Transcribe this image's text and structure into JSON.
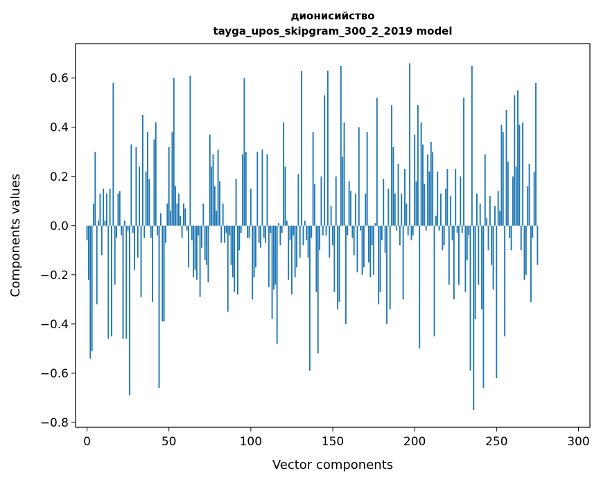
{
  "chart_data": {
    "type": "bar",
    "title": "дионисийство",
    "subtitle": "tayga_upos_skipgram_300_2_2019 model",
    "xlabel": "Vector components",
    "ylabel": "Components values",
    "xlim": [
      -7,
      307
    ],
    "ylim": [
      -0.82,
      0.74
    ],
    "x_ticks": [
      0,
      50,
      100,
      150,
      200,
      250,
      300
    ],
    "x_tick_labels": [
      "0",
      "50",
      "100",
      "150",
      "200",
      "250",
      "300"
    ],
    "y_ticks": [
      -0.8,
      -0.6,
      -0.4,
      -0.2,
      0.0,
      0.2,
      0.4,
      0.6
    ],
    "y_tick_labels": [
      "−0.8",
      "−0.6",
      "−0.4",
      "−0.2",
      "0.0",
      "0.2",
      "0.4",
      "0.6"
    ],
    "grid": false,
    "bar_color": "#1f77b4",
    "values": [
      -0.06,
      -0.22,
      -0.54,
      -0.51,
      0.09,
      0.3,
      -0.32,
      0.02,
      0.13,
      -0.12,
      0.15,
      0.02,
      0.13,
      -0.46,
      0.15,
      -0.45,
      0.58,
      -0.24,
      -0.05,
      0.13,
      0.14,
      -0.04,
      -0.46,
      0.02,
      -0.46,
      -0.02,
      -0.69,
      0.33,
      -0.03,
      -0.18,
      0.32,
      -0.13,
      0.24,
      -0.29,
      0.45,
      -0.05,
      0.22,
      0.38,
      0.19,
      -0.05,
      -0.31,
      0.35,
      0.42,
      -0.04,
      -0.66,
      0.05,
      -0.39,
      -0.39,
      -0.07,
      0.09,
      0.32,
      0.06,
      0.38,
      0.6,
      0.16,
      0.09,
      0.13,
      0.04,
      -0.05,
      0.09,
      0.07,
      -0.02,
      -0.17,
      0.61,
      -0.06,
      -0.21,
      -0.18,
      -0.22,
      -0.04,
      -0.29,
      -0.09,
      0.09,
      -0.14,
      -0.16,
      -0.23,
      0.37,
      0.24,
      0.29,
      0.16,
      0.06,
      0.31,
      0.18,
      -0.07,
      0.09,
      -0.07,
      -0.03,
      -0.35,
      -0.04,
      -0.16,
      -0.21,
      -0.27,
      0.19,
      -0.28,
      -0.1,
      -0.03,
      0.29,
      0.6,
      0.3,
      -0.05,
      -0.05,
      0.15,
      -0.3,
      -0.21,
      -0.17,
      0.3,
      -0.07,
      -0.09,
      0.31,
      -0.05,
      -0.07,
      0.29,
      -0.25,
      -0.03,
      -0.38,
      -0.26,
      -0.24,
      -0.48,
      0.01,
      -0.08,
      -0.03,
      0.42,
      0.24,
      0.02,
      -0.22,
      -0.06,
      -0.28,
      -0.04,
      -0.21,
      -0.17,
      0.21,
      -0.13,
      0.63,
      -0.08,
      0.02,
      -0.06,
      -0.13,
      -0.59,
      -0.05,
      0.38,
      0.17,
      -0.27,
      -0.52,
      -0.1,
      0.2,
      -0.04,
      0.53,
      -0.04,
      0.63,
      -0.13,
      0.08,
      -0.08,
      -0.27,
      0.2,
      -0.34,
      -0.31,
      0.65,
      0.28,
      0.42,
      -0.4,
      -0.04,
      0.18,
      0.14,
      -0.05,
      -0.12,
      0.13,
      -0.19,
      0.4,
      -0.02,
      -0.2,
      -0.17,
      0.13,
      0.38,
      -0.15,
      -0.21,
      -0.08,
      -0.2,
      0.01,
      0.52,
      -0.32,
      -0.27,
      -0.06,
      0.19,
      -0.11,
      -0.4,
      0.15,
      -0.34,
      0.49,
      0.32,
      0.13,
      -0.02,
      0.25,
      -0.08,
      0.13,
      -0.3,
      0.23,
      0.09,
      -0.04,
      0.66,
      -0.06,
      -0.04,
      0.37,
      0.18,
      0.49,
      -0.5,
      0.42,
      0.33,
      0.17,
      -0.02,
      0.29,
      0.22,
      0.34,
      0.3,
      -0.45,
      0.04,
      0.22,
      -0.02,
      0.13,
      -0.1,
      -0.08,
      0.15,
      0.23,
      -0.24,
      0.12,
      -0.06,
      -0.3,
      0.23,
      -0.03,
      -0.24,
      0.2,
      -0.03,
      0.52,
      -0.27,
      -0.14,
      -0.04,
      -0.59,
      0.65,
      -0.75,
      -0.38,
      0.13,
      -0.24,
      0.09,
      -0.34,
      -0.66,
      0.29,
      0.03,
      -0.1,
      0.12,
      -0.16,
      -0.26,
      0.08,
      -0.62,
      0.14,
      0.06,
      0.41,
      0.38,
      -0.45,
      0.47,
      0.26,
      -0.05,
      -0.1,
      0.2,
      0.53,
      0.24,
      0.55,
      0.41,
      -0.1,
      0.42,
      -0.22,
      -0.2,
      0.16,
      0.25,
      -0.31,
      -0.05,
      0.22,
      0.58,
      -0.16
    ]
  }
}
